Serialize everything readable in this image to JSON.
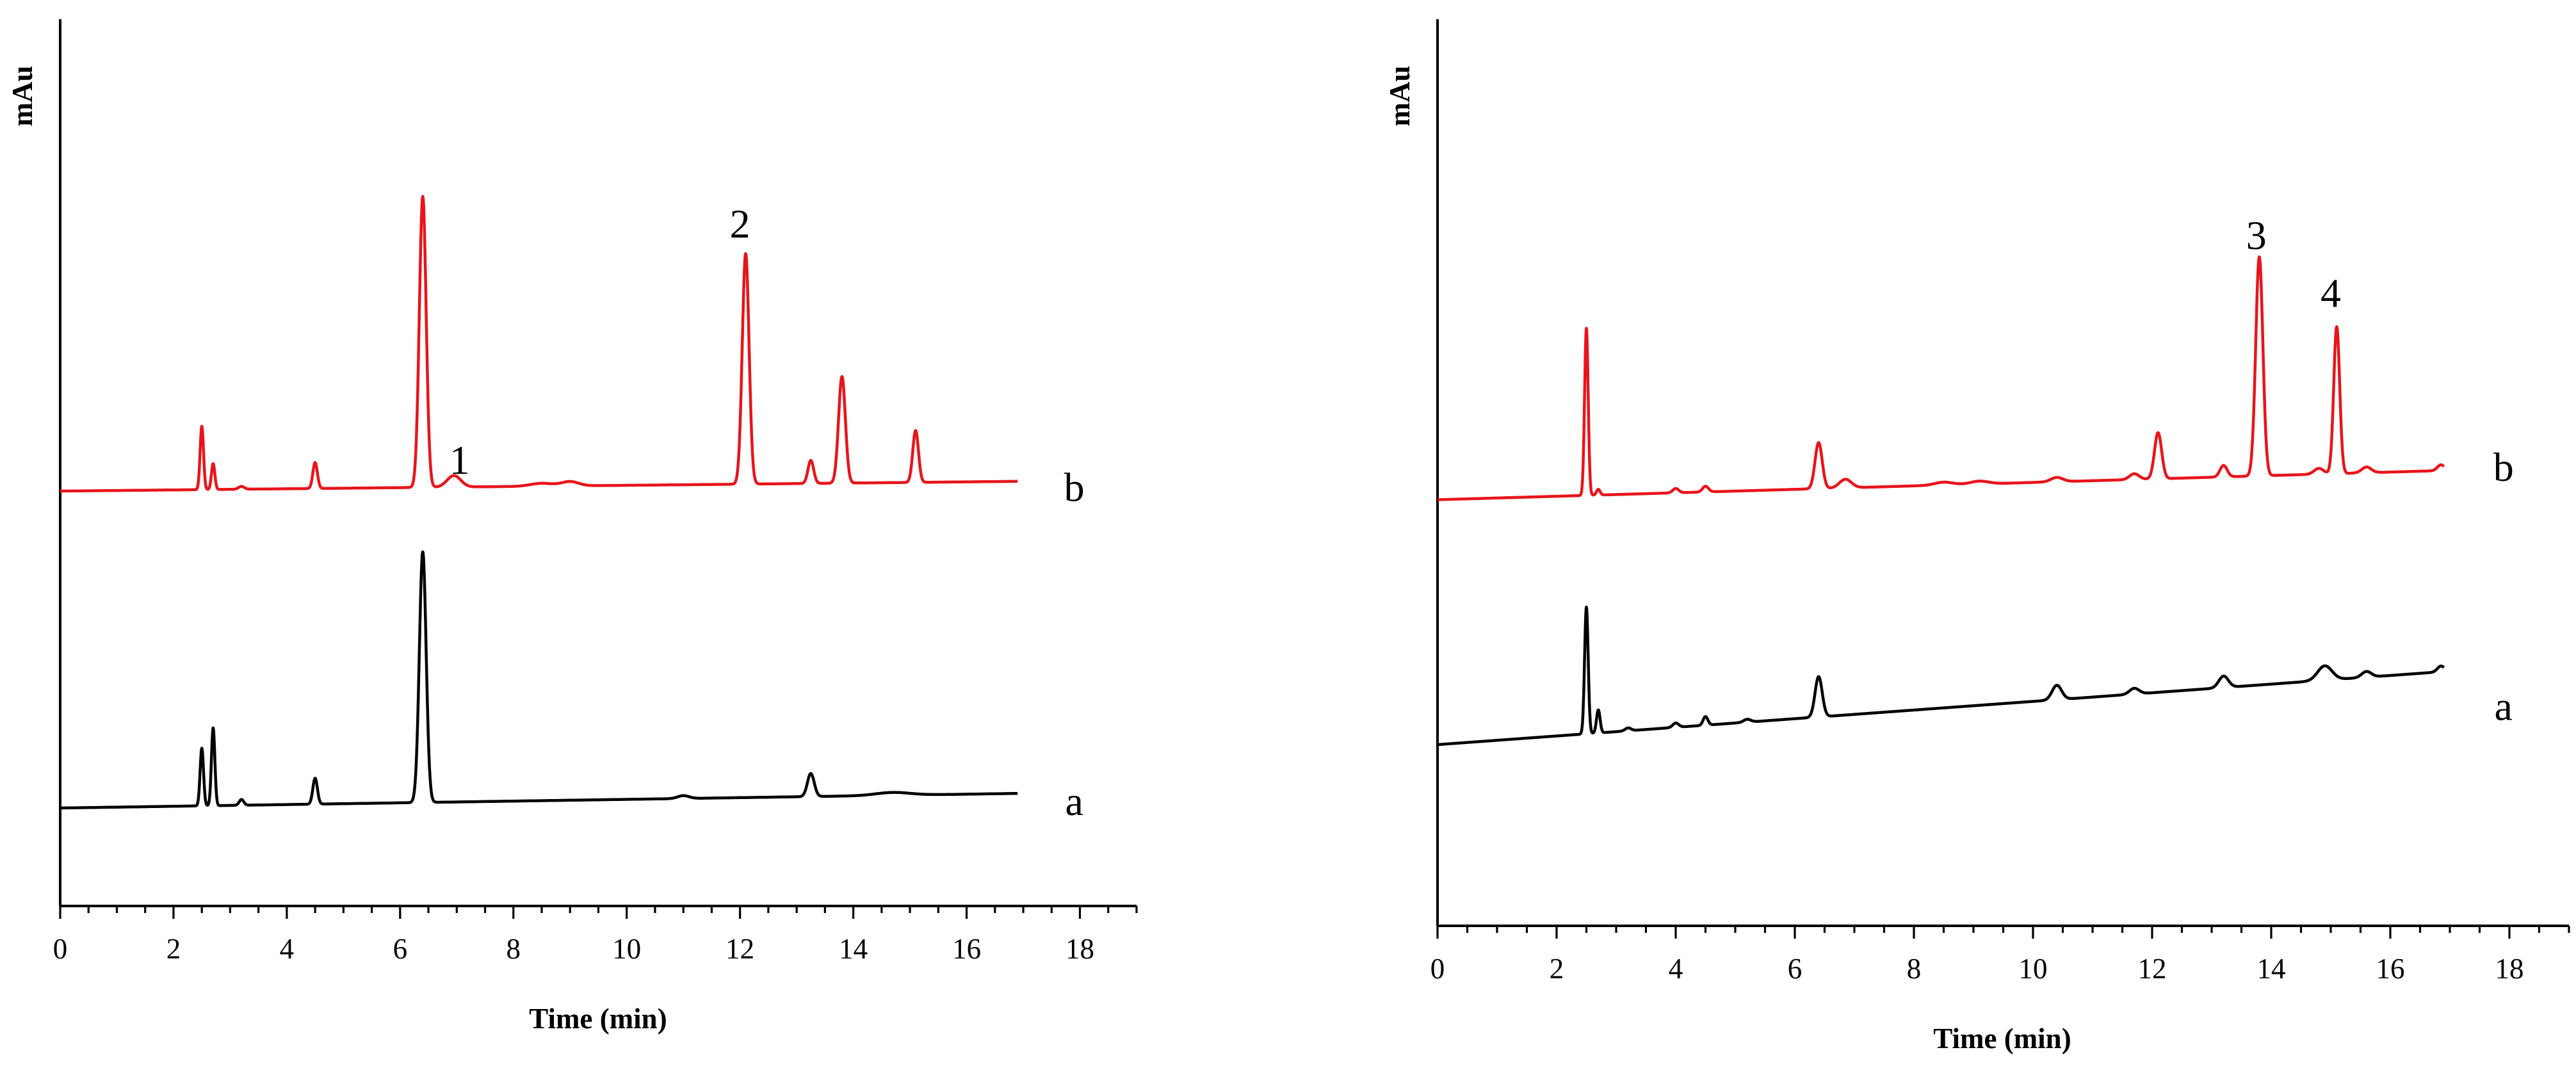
{
  "chart_data": [
    {
      "type": "line",
      "title": "",
      "xlabel": "Time (min)",
      "ylabel": "mAu",
      "xlim": [
        0,
        19
      ],
      "x_ticks": [
        "0",
        "2",
        "4",
        "6",
        "8",
        "10",
        "12",
        "14",
        "16",
        "18"
      ],
      "y_ticks": [],
      "grid": false,
      "series": [
        {
          "name": "a",
          "color": "#000000",
          "baseline": 0,
          "x_end": 16.9,
          "slope": 0.003,
          "peaks": [
            {
              "t": 2.5,
              "h": 0.2,
              "w": 0.03
            },
            {
              "t": 2.7,
              "h": 0.27,
              "w": 0.03
            },
            {
              "t": 3.2,
              "h": 0.02,
              "w": 0.04
            },
            {
              "t": 4.5,
              "h": 0.09,
              "w": 0.04
            },
            {
              "t": 6.4,
              "h": 0.87,
              "w": 0.06
            },
            {
              "t": 11.0,
              "h": 0.01,
              "w": 0.1
            },
            {
              "t": 13.25,
              "h": 0.08,
              "w": 0.06
            },
            {
              "t": 14.7,
              "h": 0.01,
              "w": 0.3
            }
          ]
        },
        {
          "name": "b",
          "color": "#e8141b",
          "baseline": 1.1,
          "x_end": 16.9,
          "slope": 0.002,
          "peaks": [
            {
              "t": 2.5,
              "h": 0.22,
              "w": 0.03
            },
            {
              "t": 2.7,
              "h": 0.09,
              "w": 0.03
            },
            {
              "t": 3.2,
              "h": 0.01,
              "w": 0.05
            },
            {
              "t": 4.5,
              "h": 0.09,
              "w": 0.04
            },
            {
              "t": 6.4,
              "h": 1.01,
              "w": 0.06
            },
            {
              "t": 6.95,
              "h": 0.04,
              "w": 0.12
            },
            {
              "t": 8.5,
              "h": 0.01,
              "w": 0.2
            },
            {
              "t": 9.0,
              "h": 0.015,
              "w": 0.15
            },
            {
              "t": 12.1,
              "h": 0.8,
              "w": 0.06
            },
            {
              "t": 13.25,
              "h": 0.08,
              "w": 0.05
            },
            {
              "t": 13.8,
              "h": 0.37,
              "w": 0.06
            },
            {
              "t": 15.1,
              "h": 0.18,
              "w": 0.05
            }
          ]
        }
      ],
      "annotations": [
        {
          "text": "1",
          "x": 7.05,
          "y": 1.16
        },
        {
          "text": "2",
          "x": 12.0,
          "y": 1.98
        }
      ],
      "trace_labels": [
        {
          "text": "b",
          "x": 17.9,
          "y": 1.11
        },
        {
          "text": "a",
          "x": 17.9,
          "y": 0.02
        }
      ]
    },
    {
      "type": "line",
      "title": "",
      "xlabel": "Time (min)",
      "ylabel": "mAu",
      "xlim": [
        0,
        19
      ],
      "x_ticks": [
        "0",
        "2",
        "4",
        "6",
        "8",
        "10",
        "12",
        "14",
        "16",
        "18"
      ],
      "y_ticks": [],
      "grid": false,
      "series": [
        {
          "name": "a",
          "color": "#000000",
          "baseline": 0,
          "x_end": 16.9,
          "slope": 0.015,
          "peaks": [
            {
              "t": 2.5,
              "h": 0.44,
              "w": 0.03
            },
            {
              "t": 2.7,
              "h": 0.08,
              "w": 0.03
            },
            {
              "t": 3.2,
              "h": 0.01,
              "w": 0.05
            },
            {
              "t": 4.0,
              "h": 0.015,
              "w": 0.05
            },
            {
              "t": 4.5,
              "h": 0.03,
              "w": 0.04
            },
            {
              "t": 5.2,
              "h": 0.01,
              "w": 0.06
            },
            {
              "t": 6.4,
              "h": 0.14,
              "w": 0.06
            },
            {
              "t": 10.4,
              "h": 0.05,
              "w": 0.08
            },
            {
              "t": 11.7,
              "h": 0.02,
              "w": 0.08
            },
            {
              "t": 13.2,
              "h": 0.04,
              "w": 0.08
            },
            {
              "t": 14.9,
              "h": 0.05,
              "w": 0.12
            },
            {
              "t": 15.6,
              "h": 0.02,
              "w": 0.08
            },
            {
              "t": 16.85,
              "h": 0.02,
              "w": 0.06
            }
          ]
        },
        {
          "name": "b",
          "color": "#e8141b",
          "baseline": 0.85,
          "x_end": 16.9,
          "slope": 0.006,
          "peaks": [
            {
              "t": 2.5,
              "h": 0.58,
              "w": 0.03
            },
            {
              "t": 2.7,
              "h": 0.02,
              "w": 0.03
            },
            {
              "t": 4.0,
              "h": 0.015,
              "w": 0.05
            },
            {
              "t": 4.5,
              "h": 0.02,
              "w": 0.05
            },
            {
              "t": 6.4,
              "h": 0.16,
              "w": 0.06
            },
            {
              "t": 6.85,
              "h": 0.03,
              "w": 0.1
            },
            {
              "t": 8.5,
              "h": 0.01,
              "w": 0.15
            },
            {
              "t": 9.1,
              "h": 0.01,
              "w": 0.15
            },
            {
              "t": 10.4,
              "h": 0.015,
              "w": 0.1
            },
            {
              "t": 11.7,
              "h": 0.02,
              "w": 0.08
            },
            {
              "t": 12.1,
              "h": 0.16,
              "w": 0.06
            },
            {
              "t": 13.2,
              "h": 0.04,
              "w": 0.06
            },
            {
              "t": 13.8,
              "h": 0.76,
              "w": 0.06
            },
            {
              "t": 14.8,
              "h": 0.02,
              "w": 0.08
            },
            {
              "t": 15.1,
              "h": 0.51,
              "w": 0.05
            },
            {
              "t": 15.6,
              "h": 0.02,
              "w": 0.08
            },
            {
              "t": 16.85,
              "h": 0.02,
              "w": 0.06
            }
          ]
        }
      ],
      "annotations": [
        {
          "text": "3",
          "x": 13.75,
          "y": 1.72
        },
        {
          "text": "4",
          "x": 15.0,
          "y": 1.52
        }
      ],
      "trace_labels": [
        {
          "text": "b",
          "x": 17.9,
          "y": 0.96
        },
        {
          "text": "a",
          "x": 17.9,
          "y": 0.13
        }
      ]
    }
  ]
}
